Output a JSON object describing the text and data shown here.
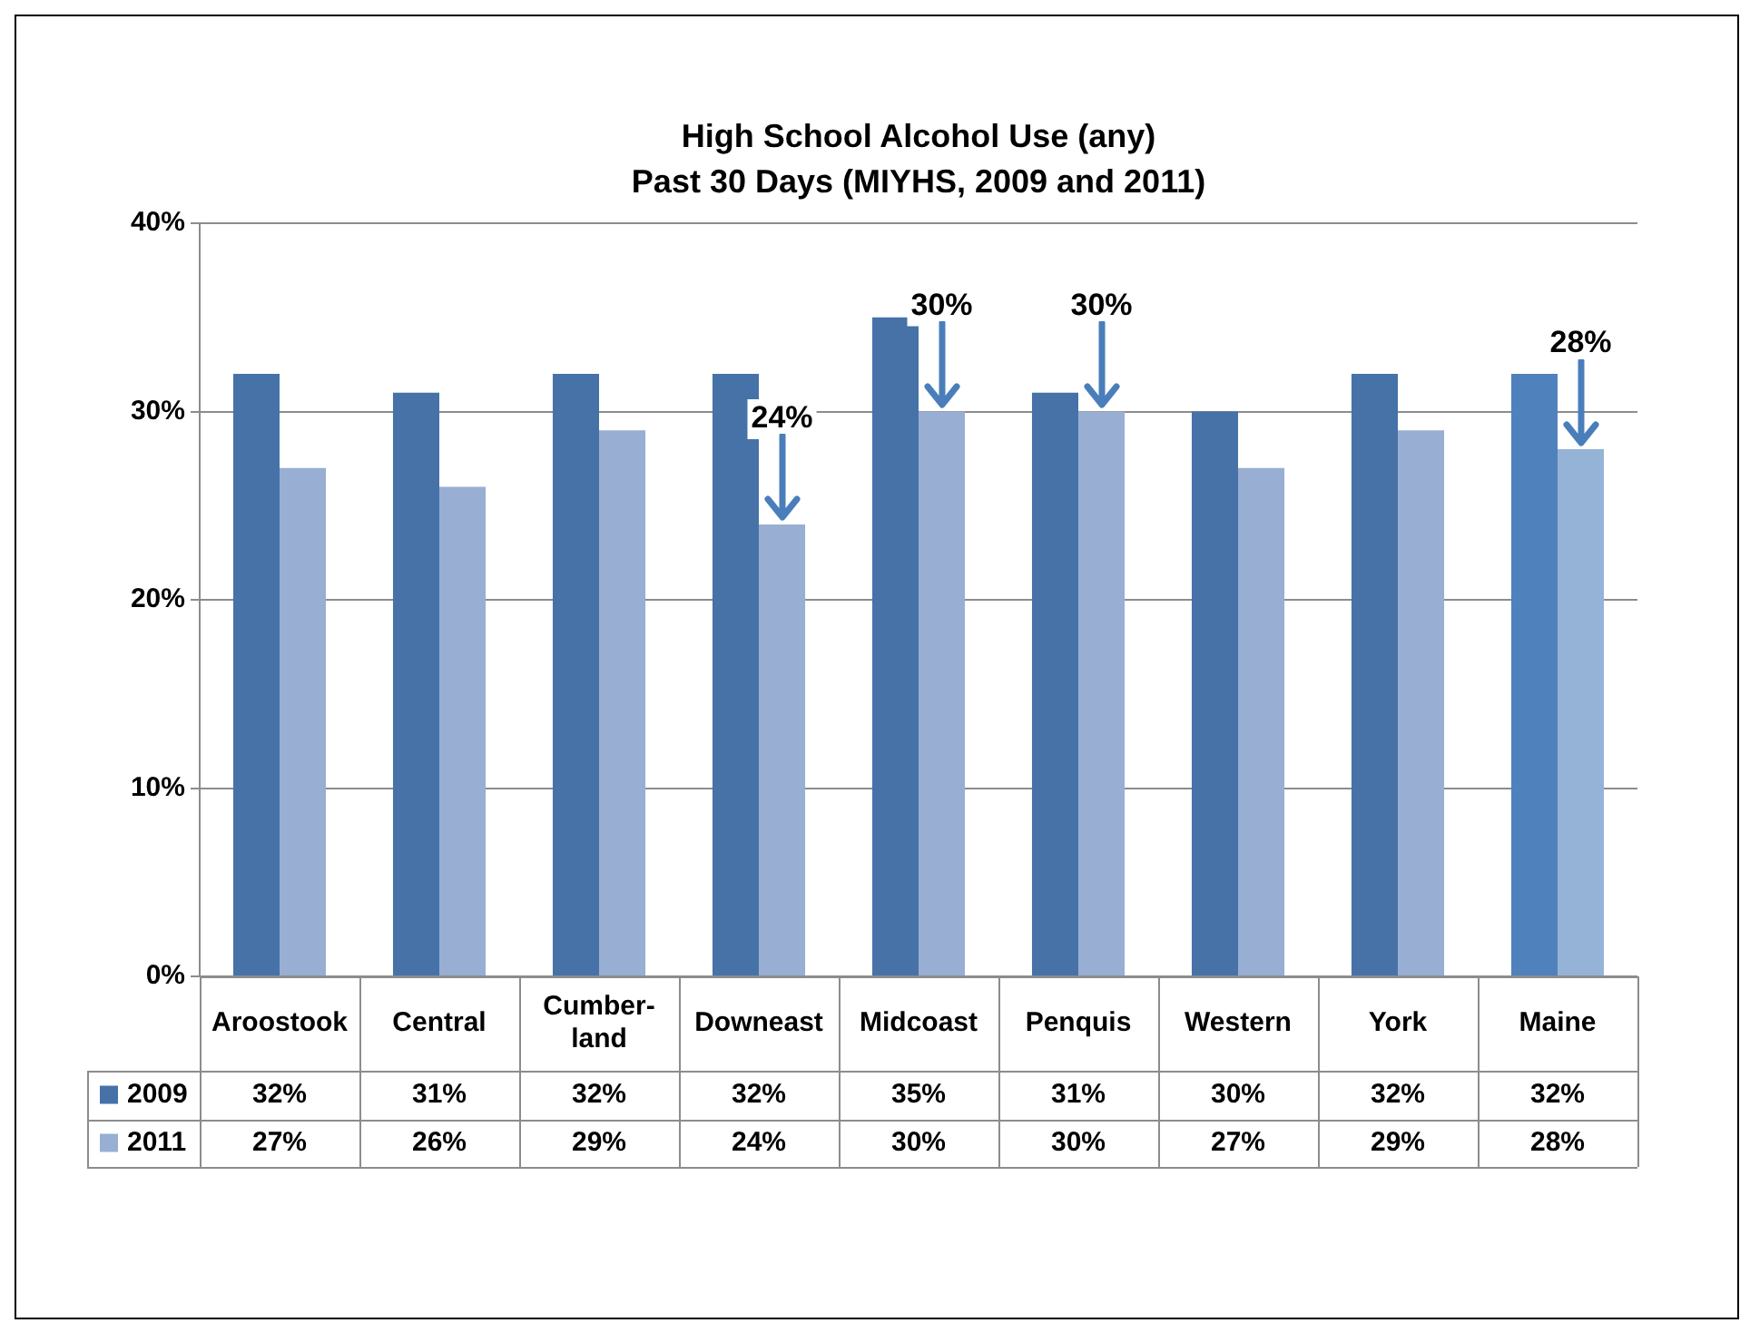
{
  "chart_data": {
    "type": "bar",
    "title": "High School Alcohol Use (any)",
    "subtitle": "Past 30 Days (MIYHS, 2009 and 2011)",
    "categories": [
      "Aroostook",
      "Central",
      "Cumber-land",
      "Downeast",
      "Midcoast",
      "Penquis",
      "Western",
      "York",
      "Maine"
    ],
    "series": [
      {
        "name": "2009",
        "color": "#4672a8",
        "colors": [
          "#4672a8",
          "#4672a8",
          "#4672a8",
          "#4672a8",
          "#4672a8",
          "#4672a8",
          "#4672a8",
          "#4672a8",
          "#4f81bd"
        ],
        "values": [
          32,
          31,
          32,
          32,
          35,
          31,
          30,
          32,
          32
        ],
        "value_labels": [
          "32%",
          "31%",
          "32%",
          "32%",
          "35%",
          "31%",
          "30%",
          "32%",
          "32%"
        ]
      },
      {
        "name": "2011",
        "color": "#98aed3",
        "colors": [
          "#98aed3",
          "#98aed3",
          "#98aed3",
          "#98aed3",
          "#98aed3",
          "#98aed3",
          "#98aed3",
          "#98aed3",
          "#95b3d7"
        ],
        "values": [
          27,
          26,
          29,
          24,
          30,
          30,
          27,
          29,
          28
        ],
        "value_labels": [
          "27%",
          "26%",
          "29%",
          "24%",
          "30%",
          "30%",
          "27%",
          "29%",
          "28%"
        ]
      }
    ],
    "ylim": [
      0,
      40
    ],
    "yticks": [
      {
        "value": 0,
        "label": "0%"
      },
      {
        "value": 10,
        "label": "10%"
      },
      {
        "value": 20,
        "label": "20%"
      },
      {
        "value": 30,
        "label": "30%"
      },
      {
        "value": 40,
        "label": "40%"
      }
    ],
    "grid": "y",
    "legend": "bottom left",
    "annotations": [
      {
        "text": "24%",
        "x": "Downeast",
        "y": 24
      },
      {
        "text": "30%",
        "x": "Midcoast",
        "y": 30
      },
      {
        "text": "30%",
        "x": "Penquis",
        "y": 30
      },
      {
        "text": "28%",
        "x": "Maine",
        "y": 28
      }
    ]
  }
}
